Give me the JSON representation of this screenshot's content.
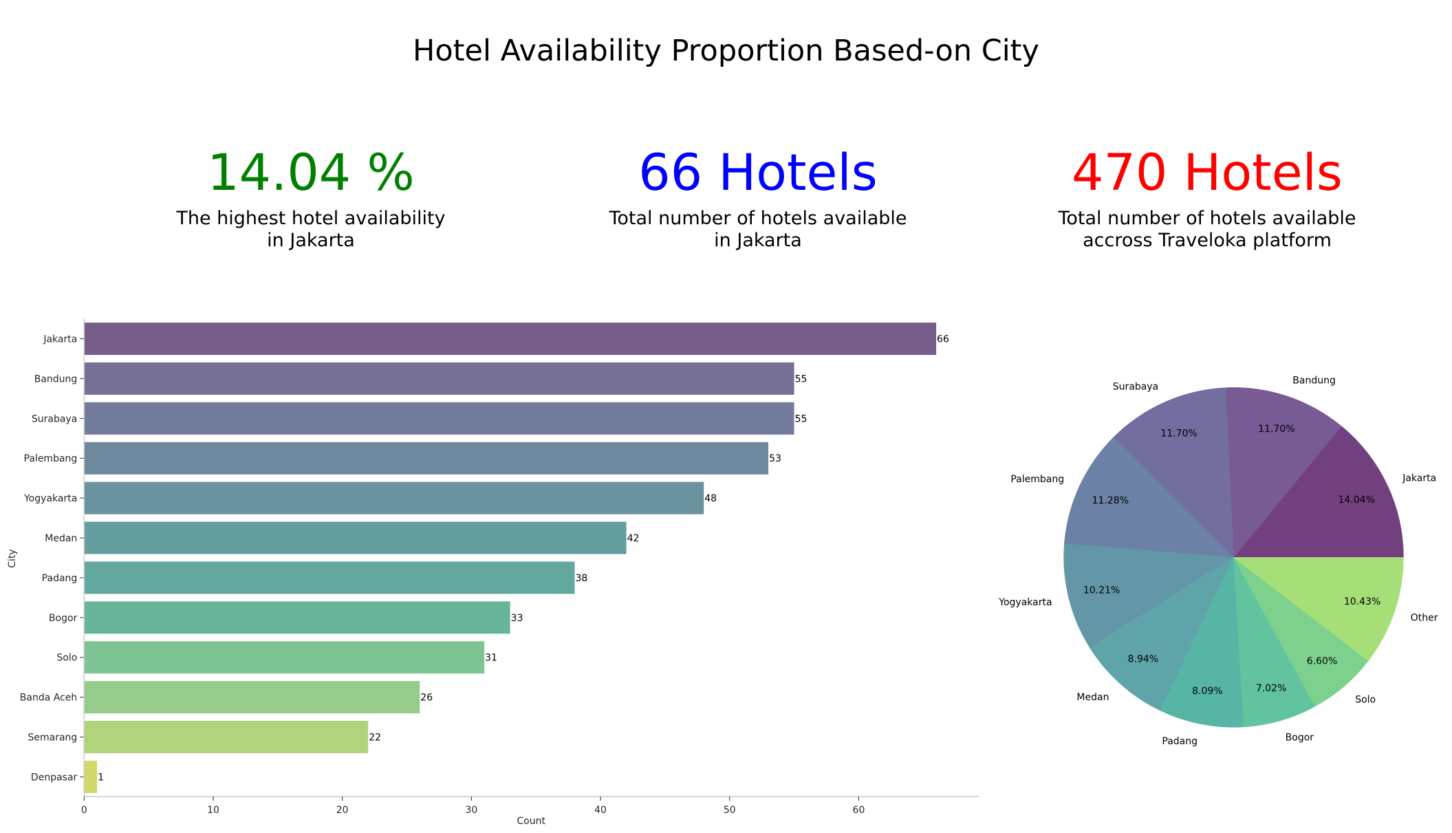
{
  "title": "Hotel Availability Proportion Based-on City",
  "kpis": [
    {
      "value": "14.04 %",
      "desc": "The highest hotel availability\nin Jakarta",
      "color": "#008000"
    },
    {
      "value": "66 Hotels",
      "desc": "Total number of hotels available\nin Jakarta",
      "color": "#0000ff"
    },
    {
      "value": "470 Hotels",
      "desc": "Total number of hotels available\naccross Traveloka platform",
      "color": "#ff0000"
    }
  ],
  "chart_data": [
    {
      "type": "bar",
      "orientation": "horizontal",
      "title": "",
      "xlabel": "Count",
      "ylabel": "City",
      "xlim": [
        0,
        69.3
      ],
      "xticks": [
        0,
        10,
        20,
        30,
        40,
        50,
        60
      ],
      "grid": false,
      "categories": [
        "Jakarta",
        "Bandung",
        "Surabaya",
        "Palembang",
        "Yogyakarta",
        "Medan",
        "Padang",
        "Bogor",
        "Solo",
        "Banda Aceh",
        "Semarang",
        "Denpasar"
      ],
      "values": [
        66,
        55,
        55,
        53,
        48,
        42,
        38,
        33,
        31,
        26,
        22,
        1
      ],
      "colors": [
        "#775d8a",
        "#777096",
        "#737c9d",
        "#6e899e",
        "#6a929f",
        "#659e9f",
        "#62a89e",
        "#69b59b",
        "#7fc495",
        "#95cc8c",
        "#b0d37b",
        "#d0d96a"
      ]
    },
    {
      "type": "pie",
      "title": "",
      "start_angle": 0,
      "direction": "counterclockwise",
      "labels": [
        "Jakarta",
        "Bandung",
        "Surabaya",
        "Palembang",
        "Yogyakarta",
        "Medan",
        "Padang",
        "Bogor",
        "Solo",
        "Other"
      ],
      "values": [
        14.04,
        11.7,
        11.7,
        11.28,
        10.21,
        8.94,
        8.09,
        7.02,
        6.6,
        10.43
      ],
      "pct_labels": [
        "14.04%",
        "11.70%",
        "11.70%",
        "11.28%",
        "10.21%",
        "8.94%",
        "8.09%",
        "7.02%",
        "6.60%",
        "10.43%"
      ],
      "colors": [
        "#73407f",
        "#785a95",
        "#726ea0",
        "#6b81a6",
        "#6397a8",
        "#5ea4a8",
        "#57b5a6",
        "#62c49e",
        "#7dd18c",
        "#a6df78"
      ]
    }
  ]
}
